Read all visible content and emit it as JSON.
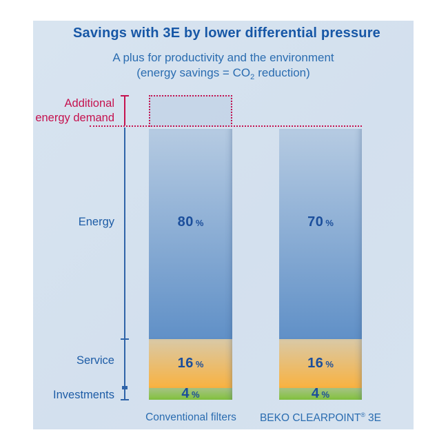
{
  "header": {
    "title": "Savings with 3E by lower differential pressure",
    "subtitle1": "A plus for productivity and the environment",
    "subtitle2_pre": "(energy savings = CO",
    "subtitle2_sub": "2",
    "subtitle2_post": "reduction)"
  },
  "labels": {
    "additional1": "Additional",
    "additional2": "energy demand",
    "energy": "Energy",
    "service": "Service",
    "investments": "Investments"
  },
  "bars": {
    "left": {
      "name": "Conventional filters",
      "energy": "80",
      "service": "16",
      "invest": "4",
      "unit": "%"
    },
    "right": {
      "name_pre": "BEKO CLEARPOINT",
      "name_sup": "®",
      "name_post": "3E",
      "energy": "70",
      "service": "16",
      "invest": "4",
      "unit": "%"
    }
  },
  "colors": {
    "accent_red": "#c5114e",
    "title_blue": "#1757a6",
    "label_blue": "#1d5ca6",
    "value_blue": "#1b4e9b",
    "axis_blue": "#2e63a8",
    "panel_bg": "#d5e2ef",
    "energy_top": "#b6cbe2",
    "energy_bottom": "#6090c7",
    "service_top": "#d9c9a7",
    "service_bottom": "#f9b240",
    "investments_top": "#a6c385",
    "investments_bottom": "#82c13d"
  },
  "chart_data": {
    "type": "bar",
    "stacked": true,
    "title": "Savings with 3E by lower differential pressure",
    "subtitle": "A plus for productivity and the environment (energy savings = CO2 reduction)",
    "categories": [
      "Conventional filters",
      "BEKO CLEARPOINT® 3E"
    ],
    "series": [
      {
        "name": "Energy",
        "values": [
          80,
          70
        ],
        "unit": "%"
      },
      {
        "name": "Service",
        "values": [
          16,
          16
        ],
        "unit": "%"
      },
      {
        "name": "Investments",
        "values": [
          4,
          4
        ],
        "unit": "%"
      }
    ],
    "annotation": {
      "label": "Additional energy demand",
      "applies_to": "Conventional filters",
      "style": "dotted-red-box-above-bar"
    },
    "legend": "none",
    "grid": false
  }
}
